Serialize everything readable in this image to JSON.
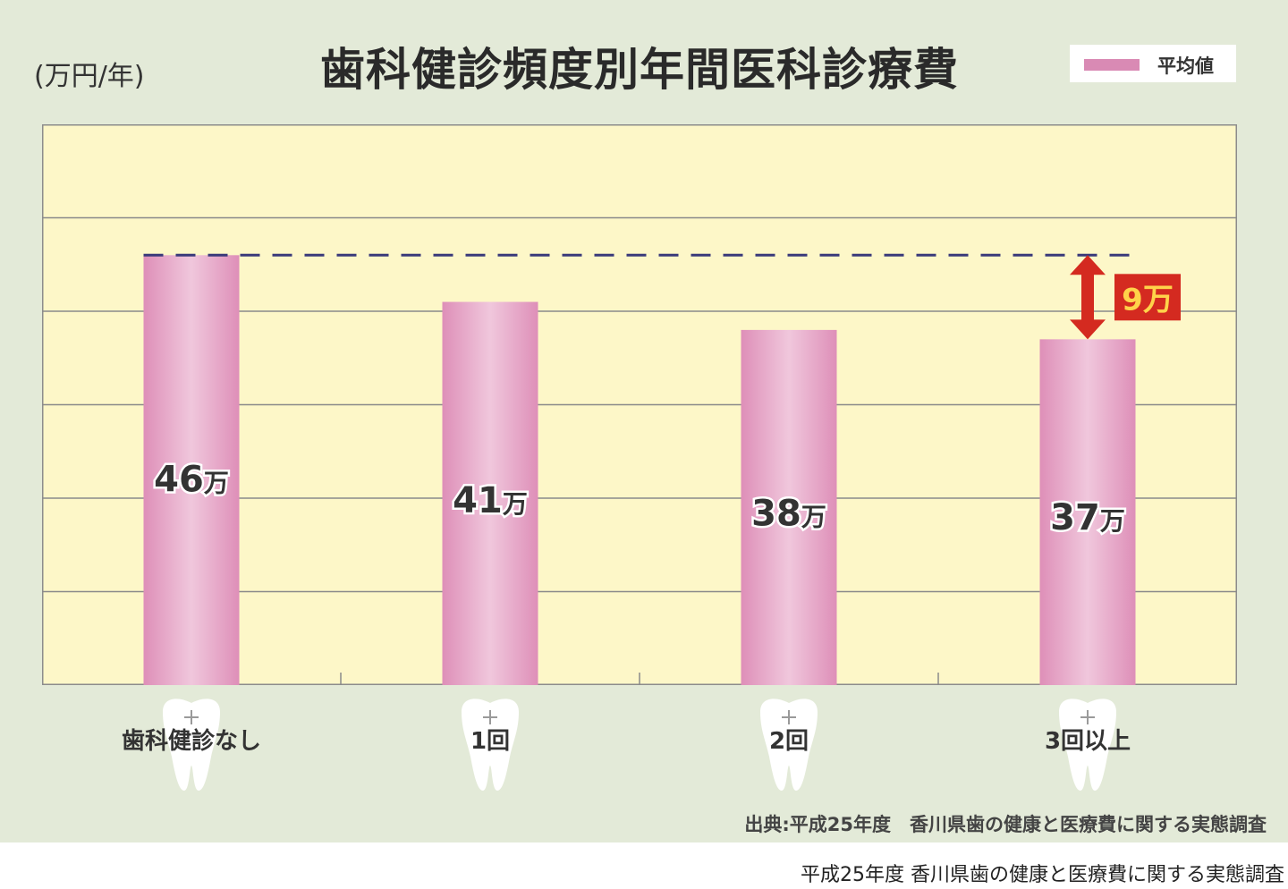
{
  "chart_data": {
    "type": "bar",
    "title": "歯科健診頻度別年間医科診療費",
    "unit_label": "(万円/年)",
    "legend": [
      {
        "name": "平均値",
        "color": "#d98ab4"
      }
    ],
    "categories": [
      "歯科健診なし",
      "1回",
      "2回",
      "3回以上"
    ],
    "series": [
      {
        "name": "平均値",
        "values": [
          46,
          41,
          38,
          37
        ]
      }
    ],
    "value_labels": [
      "46",
      "41",
      "38",
      "37"
    ],
    "value_unit": "万",
    "ylim": [
      0,
      60
    ],
    "grid": true,
    "legend_position": "top-right",
    "reference_line": {
      "value": 46,
      "style": "dashed"
    },
    "difference_annotation": {
      "label": "9万",
      "from": 46,
      "to": 37,
      "category": "3回以上"
    },
    "source": "出典:平成25年度　香川県歯の健康と医療費に関する実態調査"
  },
  "caption": "平成25年度 香川県歯の健康と医療費に関する実態調査",
  "colors": {
    "background": "#e3ead8",
    "plot_fill": "#fdf7c8",
    "bar": "#de8fb8",
    "bar_highlight": "#f0c7dc",
    "reference_line": "#3a3a7a",
    "annotation": "#d42a20",
    "annotation_text": "#ffd34a"
  }
}
